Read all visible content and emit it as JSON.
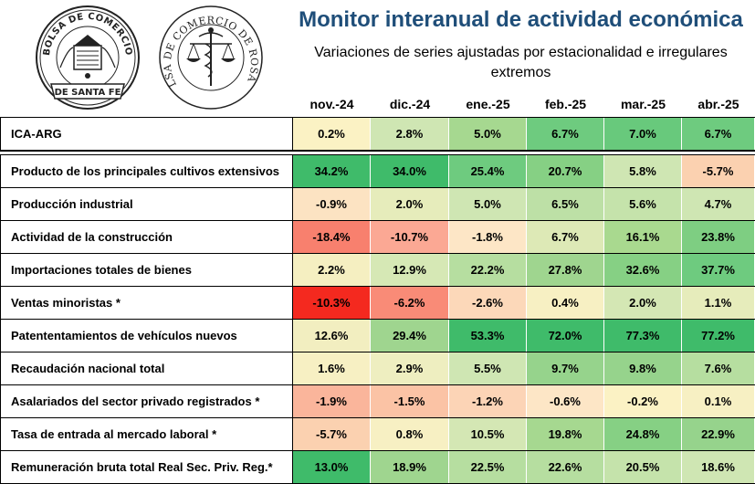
{
  "header": {
    "title": "Monitor interanual de actividad económica",
    "subtitle_line1": "Variaciones de series ajustadas por estacionalidad e irregulares",
    "subtitle_line2": "extremos"
  },
  "logos": {
    "left_seal_text_top": "BOLSA DE COMERCIO",
    "left_seal_text_bottom": "DE SANTA FE",
    "right_seal_text": "BOLSA DE COMERCIO DE ROSARIO"
  },
  "table": {
    "columns": [
      "nov.-24",
      "dic.-24",
      "ene.-25",
      "feb.-25",
      "mar.-25",
      "abr.-25"
    ],
    "rows": [
      {
        "label": "ICA-ARG",
        "values": [
          "0.2%",
          "2.8%",
          "5.0%",
          "6.7%",
          "7.0%",
          "6.7%"
        ],
        "colors": [
          "#fbf2c4",
          "#cfe6b3",
          "#a6d890",
          "#6ecb7f",
          "#68c97c",
          "#6ecb7f"
        ]
      },
      {
        "label": "Producto de los principales cultivos extensivos",
        "values": [
          "34.2%",
          "34.0%",
          "25.4%",
          "20.7%",
          "5.8%",
          "-5.7%"
        ],
        "colors": [
          "#3fbb6a",
          "#3fbb6a",
          "#6ecb7f",
          "#86d084",
          "#cfe6b3",
          "#fbd1b0"
        ]
      },
      {
        "label": "Producción industrial",
        "values": [
          "-0.9%",
          "2.0%",
          "5.0%",
          "6.5%",
          "5.6%",
          "4.7%"
        ],
        "colors": [
          "#fce3c2",
          "#e6ecbb",
          "#cfe6b3",
          "#bde0a6",
          "#c5e3ab",
          "#cfe6b3"
        ]
      },
      {
        "label": "Actividad de la construcción",
        "values": [
          "-18.4%",
          "-10.7%",
          "-1.8%",
          "6.7%",
          "16.1%",
          "23.8%"
        ],
        "colors": [
          "#f8806e",
          "#fba894",
          "#fde6c6",
          "#dde9b6",
          "#a9d98f",
          "#7ece82"
        ]
      },
      {
        "label": "Importaciones totales de bienes",
        "values": [
          "2.2%",
          "12.9%",
          "22.2%",
          "27.8%",
          "32.6%",
          "37.7%"
        ],
        "colors": [
          "#f5efc1",
          "#d6e8b5",
          "#b6deA0",
          "#9fd58f",
          "#86d084",
          "#6ecb7f"
        ]
      },
      {
        "label": "Ventas minoristas *",
        "values": [
          "-10.3%",
          "-6.2%",
          "-2.6%",
          "0.4%",
          "2.0%",
          "1.1%"
        ],
        "colors": [
          "#f4291f",
          "#f98b77",
          "#fcd8b9",
          "#f7f0c3",
          "#d4e7b4",
          "#e6ecbb"
        ]
      },
      {
        "label": "Patententamientos de vehículos nuevos",
        "values": [
          "12.6%",
          "29.4%",
          "53.3%",
          "72.0%",
          "77.3%",
          "77.2%"
        ],
        "colors": [
          "#f2eec0",
          "#9fd58f",
          "#3fbb6a",
          "#3fbb6a",
          "#3fbb6a",
          "#3fbb6a"
        ]
      },
      {
        "label": "Recaudación nacional total",
        "values": [
          "1.6%",
          "2.9%",
          "5.5%",
          "9.7%",
          "9.8%",
          "7.6%"
        ],
        "colors": [
          "#f7f0c3",
          "#eeeec0",
          "#cfe6b3",
          "#96d38c",
          "#96d38c",
          "#b6dea0"
        ]
      },
      {
        "label": "Asalariados del sector privado registrados *",
        "values": [
          "-1.9%",
          "-1.5%",
          "-1.2%",
          "-0.6%",
          "-0.2%",
          "0.1%"
        ],
        "colors": [
          "#fab59b",
          "#fbc3a5",
          "#fcd4b6",
          "#fde6c6",
          "#fbf2c4",
          "#f7f0c3"
        ]
      },
      {
        "label": "Tasa de entrada al mercado laboral *",
        "values": [
          "-5.7%",
          "0.8%",
          "10.5%",
          "19.8%",
          "24.8%",
          "22.9%"
        ],
        "colors": [
          "#fbd1b0",
          "#f7f0c3",
          "#d4e7b4",
          "#a6d890",
          "#86d084",
          "#96d38c"
        ]
      },
      {
        "label": "Remuneración bruta total Real Sec. Priv. Reg.*",
        "values": [
          "13.0%",
          "18.9%",
          "22.5%",
          "22.6%",
          "20.5%",
          "18.6%"
        ],
        "colors": [
          "#3fbb6a",
          "#9fd58f",
          "#b6dea0",
          "#b6dea0",
          "#c5e3ab",
          "#cfe6b3"
        ]
      }
    ]
  }
}
